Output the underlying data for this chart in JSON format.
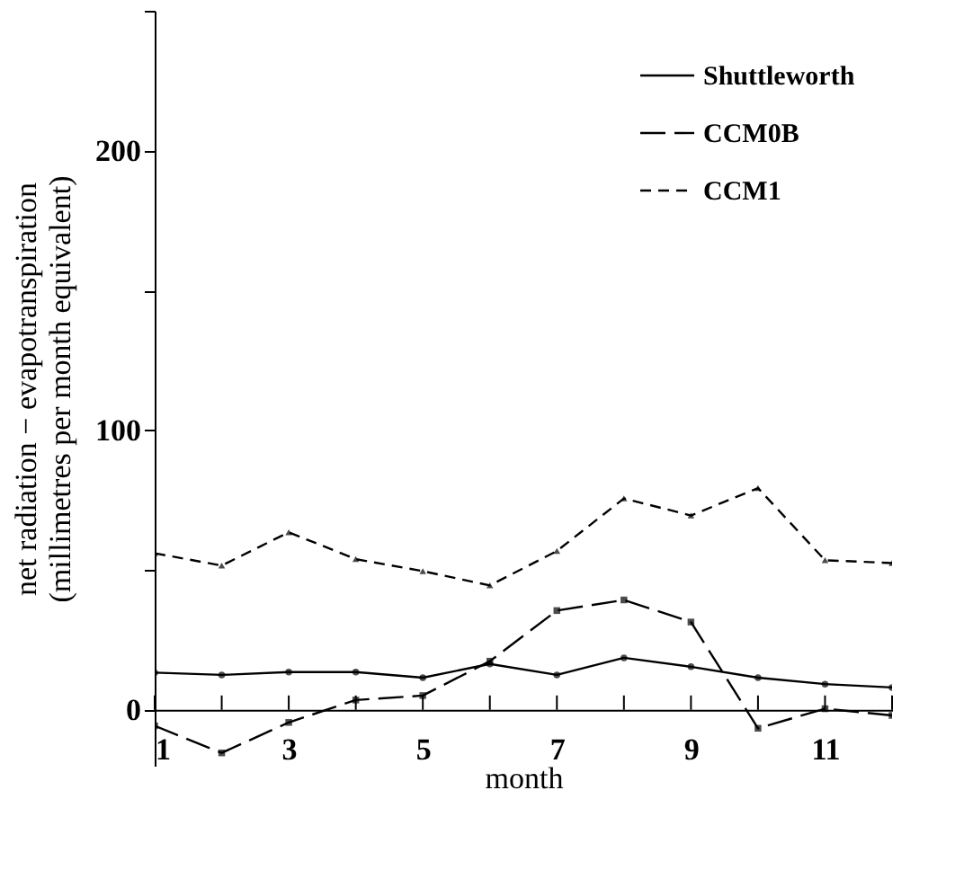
{
  "chart_data": {
    "type": "line",
    "xlabel": "month",
    "ylabel": [
      "net radiation − evapotranspiration",
      "(millimetres per month equivalent)"
    ],
    "x": [
      1,
      2,
      3,
      4,
      5,
      6,
      7,
      8,
      9,
      10,
      11,
      12
    ],
    "series": [
      {
        "name": "Shuttleworth",
        "color": "#000000",
        "line_style": "solid",
        "marker": "circle",
        "values": [
          13.3,
          12.5,
          13.5,
          13.5,
          11.5,
          16.4,
          12.5,
          18.6,
          15.4,
          11.5,
          9.2,
          8
        ]
      },
      {
        "name": "CCM0B",
        "color": "#000000",
        "line_style": "dashed",
        "marker": "square",
        "values": [
          -5.7,
          -15.4,
          -4.5,
          3.5,
          5.1,
          17.4,
          35.5,
          39.3,
          31.4,
          -6.6,
          0.4,
          -2
        ]
      },
      {
        "name": "CCM1",
        "color": "#000000",
        "line_style": "dashed",
        "marker": "triangle",
        "values": [
          56,
          51.6,
          63.5,
          53.9,
          49.6,
          44.5,
          56.8,
          75.6,
          69.5,
          79.3,
          53.5,
          52.5
        ]
      }
    ],
    "xlim": [
      1,
      12
    ],
    "xticks": [
      1,
      {
        "value": 2,
        "label": null
      },
      3,
      {
        "value": 4,
        "label": null
      },
      5,
      {
        "value": 6,
        "label": null
      },
      7,
      {
        "value": 8,
        "label": null
      },
      9,
      {
        "value": 10,
        "label": null
      },
      11,
      {
        "value": 12,
        "label": null
      }
    ],
    "ylim": [
      -20,
      250
    ],
    "yticks": [
      0,
      {
        "value": 50,
        "label": null
      },
      100,
      {
        "value": 150,
        "label": null
      },
      200,
      {
        "value": 250,
        "label": null
      }
    ],
    "grid": false,
    "legend": "top right"
  }
}
